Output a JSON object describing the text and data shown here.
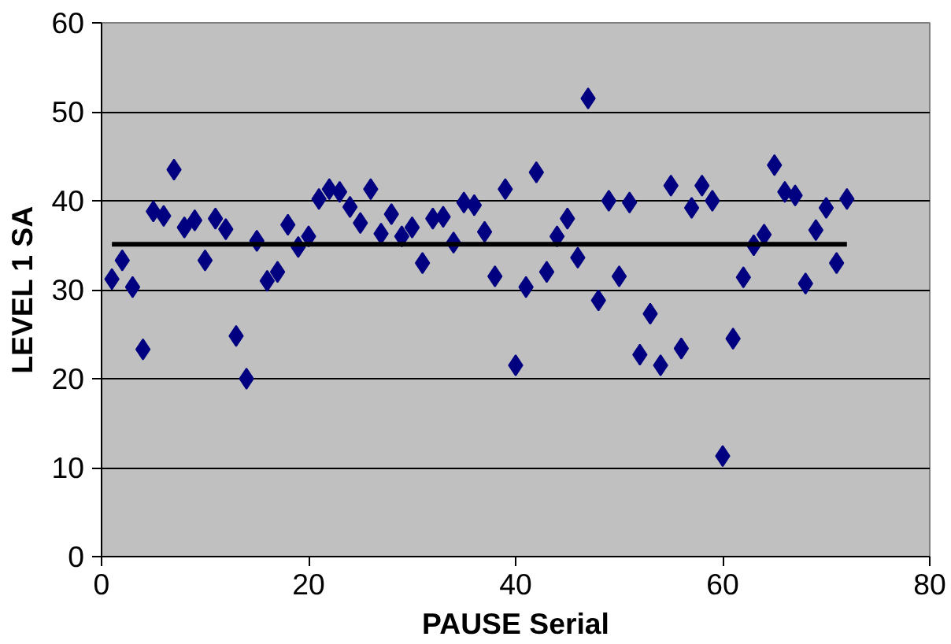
{
  "chart_data": {
    "type": "scatter",
    "xlabel": "PAUSE Serial",
    "ylabel": "LEVEL 1 SA",
    "xlim": [
      0,
      80
    ],
    "ylim": [
      0,
      60
    ],
    "xticks": [
      0,
      20,
      40,
      60,
      80
    ],
    "yticks": [
      0,
      10,
      20,
      30,
      40,
      50,
      60
    ],
    "grid": "y",
    "marker": "diamond",
    "x": [
      1,
      2,
      3,
      4,
      5,
      6,
      7,
      8,
      9,
      10,
      11,
      12,
      13,
      14,
      15,
      16,
      17,
      18,
      19,
      20,
      21,
      22,
      23,
      24,
      25,
      26,
      27,
      28,
      29,
      30,
      31,
      32,
      33,
      34,
      35,
      36,
      37,
      38,
      39,
      40,
      41,
      42,
      43,
      44,
      45,
      46,
      47,
      48,
      49,
      50,
      51,
      52,
      53,
      54,
      55,
      56,
      57,
      58,
      59,
      60,
      61,
      62,
      63,
      64,
      65,
      66,
      67,
      68,
      69,
      70,
      71,
      72
    ],
    "series": [
      {
        "color": "#000080",
        "values": [
          31.2,
          33.3,
          30.3,
          23.3,
          38.8,
          38.3,
          43.5,
          37,
          37.8,
          33.3,
          38,
          36.8,
          24.8,
          20,
          35.5,
          31,
          32,
          37.3,
          34.8,
          36,
          40.2,
          41.3,
          41,
          39.3,
          37.5,
          41.3,
          36.3,
          38.5,
          36,
          37,
          33,
          38,
          38.2,
          35.3,
          39.8,
          39.5,
          36.5,
          31.5,
          41.3,
          21.5,
          30.3,
          43.2,
          32,
          36,
          38,
          33.6,
          51.5,
          28.8,
          40,
          31.5,
          39.8,
          22.7,
          27.3,
          21.5,
          41.7,
          23.4,
          39.2,
          41.7,
          40,
          11.3,
          24.5,
          31.4,
          35,
          36.2,
          44,
          41,
          40.6,
          30.7,
          36.7,
          39.2,
          33,
          40.2
        ]
      },
      {
        "type": "line",
        "color": "#000000",
        "x": [
          1,
          72
        ],
        "values": [
          35.1,
          35.1
        ],
        "marker": "none",
        "line_style": "solid"
      }
    ]
  }
}
